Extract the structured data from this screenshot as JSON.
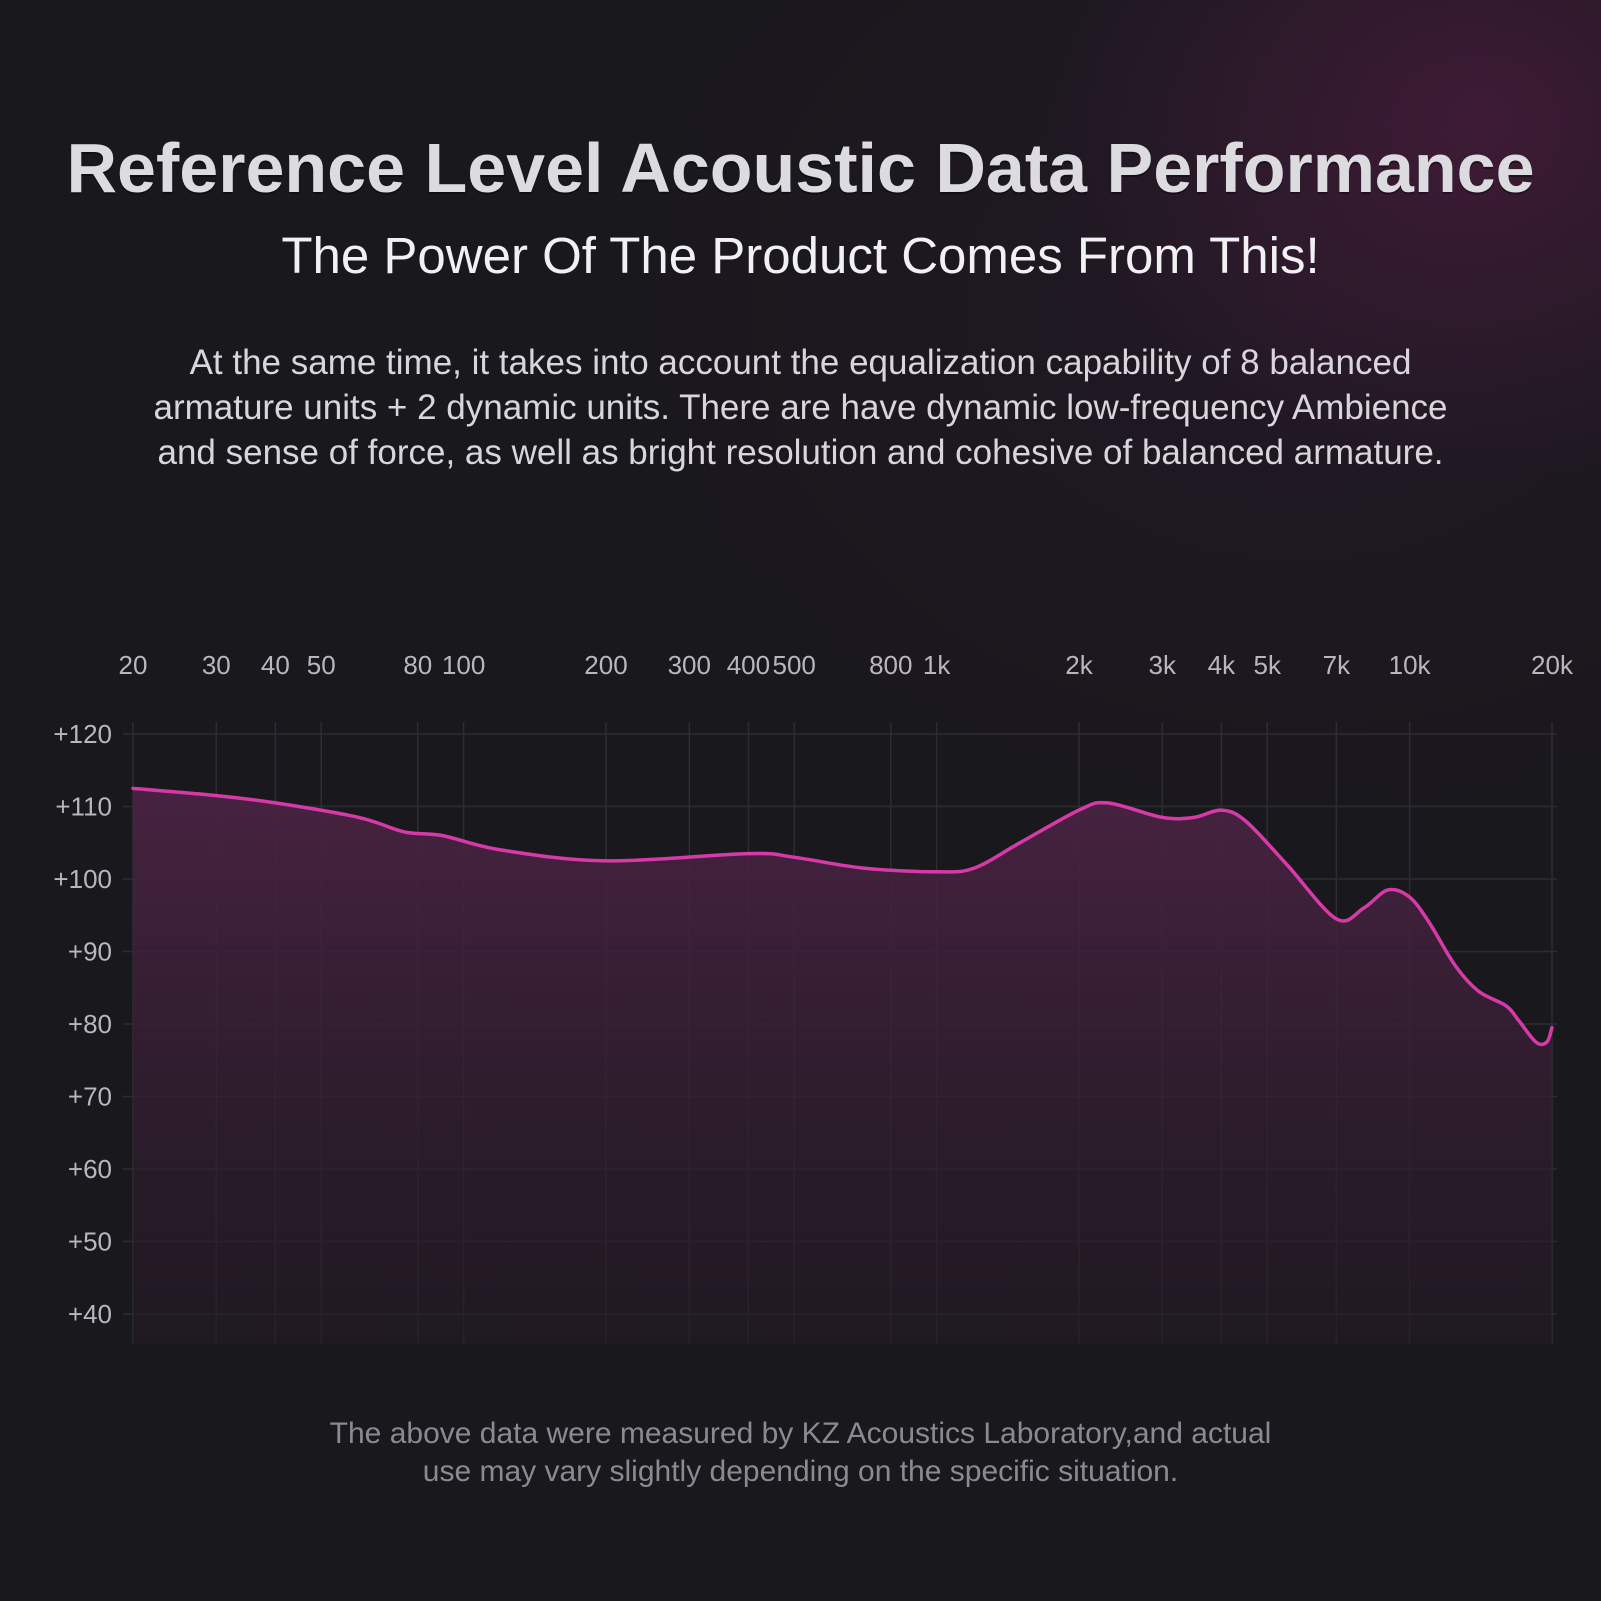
{
  "header": {
    "title": "Reference Level Acoustic Data Performance",
    "subtitle": "The Power Of The Product Comes From This!",
    "description_lines": [
      "At the same time, it takes into account the equalization capability of 8 balanced",
      "armature units + 2 dynamic units. There are have dynamic low-frequency Ambience",
      "and sense of force, as well as bright resolution and cohesive of balanced armature."
    ]
  },
  "footnote": {
    "lines": [
      "The above data were measured by KZ Acoustics Laboratory,and actual",
      "use may vary slightly depending on the specific situation."
    ]
  },
  "colors": {
    "background": "#19181d",
    "curve": "#d63aa8",
    "fill_top": "#4a2343",
    "fill_bottom": "#231a24",
    "grid": "#2e2c33"
  },
  "chart_data": {
    "type": "area",
    "title": "",
    "xlabel": "",
    "ylabel": "",
    "x_scale": "log",
    "xlim": [
      20,
      20000
    ],
    "ylim": [
      40,
      120
    ],
    "grid": true,
    "x_ticks": [
      {
        "value": 20,
        "label": "20"
      },
      {
        "value": 30,
        "label": "30"
      },
      {
        "value": 40,
        "label": "40"
      },
      {
        "value": 50,
        "label": "50"
      },
      {
        "value": 80,
        "label": "80"
      },
      {
        "value": 100,
        "label": "100"
      },
      {
        "value": 200,
        "label": "200"
      },
      {
        "value": 300,
        "label": "300"
      },
      {
        "value": 400,
        "label": "400"
      },
      {
        "value": 500,
        "label": "500"
      },
      {
        "value": 800,
        "label": "800"
      },
      {
        "value": 1000,
        "label": "1k"
      },
      {
        "value": 2000,
        "label": "2k"
      },
      {
        "value": 3000,
        "label": "3k"
      },
      {
        "value": 4000,
        "label": "4k"
      },
      {
        "value": 5000,
        "label": "5k"
      },
      {
        "value": 7000,
        "label": "7k"
      },
      {
        "value": 10000,
        "label": "10k"
      },
      {
        "value": 20000,
        "label": "20k"
      }
    ],
    "y_ticks": [
      {
        "value": 120,
        "label": "+120"
      },
      {
        "value": 110,
        "label": "+110"
      },
      {
        "value": 100,
        "label": "+100"
      },
      {
        "value": 90,
        "label": "+90"
      },
      {
        "value": 80,
        "label": "+80"
      },
      {
        "value": 70,
        "label": "+70"
      },
      {
        "value": 60,
        "label": "+60"
      },
      {
        "value": 50,
        "label": "+50"
      },
      {
        "value": 40,
        "label": "+40"
      }
    ],
    "series": [
      {
        "points": [
          [
            20,
            112.5
          ],
          [
            30,
            111.5
          ],
          [
            40,
            110.5
          ],
          [
            60,
            108.5
          ],
          [
            75,
            106.5
          ],
          [
            90,
            106
          ],
          [
            120,
            104
          ],
          [
            200,
            102.5
          ],
          [
            400,
            103.5
          ],
          [
            500,
            103
          ],
          [
            700,
            101.5
          ],
          [
            1000,
            101
          ],
          [
            1200,
            101.5
          ],
          [
            1500,
            105
          ],
          [
            2000,
            109.5
          ],
          [
            2300,
            110.5
          ],
          [
            3000,
            108.5
          ],
          [
            3500,
            108.5
          ],
          [
            4000,
            109.5
          ],
          [
            4500,
            108
          ],
          [
            5500,
            102
          ],
          [
            7000,
            94.5
          ],
          [
            8000,
            96
          ],
          [
            9000,
            98.5
          ],
          [
            10000,
            97.5
          ],
          [
            11000,
            94
          ],
          [
            12500,
            88
          ],
          [
            14000,
            84.5
          ],
          [
            16000,
            82.5
          ],
          [
            17000,
            80.5
          ],
          [
            18500,
            77.5
          ],
          [
            19500,
            77.5
          ],
          [
            20000,
            79.5
          ]
        ]
      }
    ]
  }
}
